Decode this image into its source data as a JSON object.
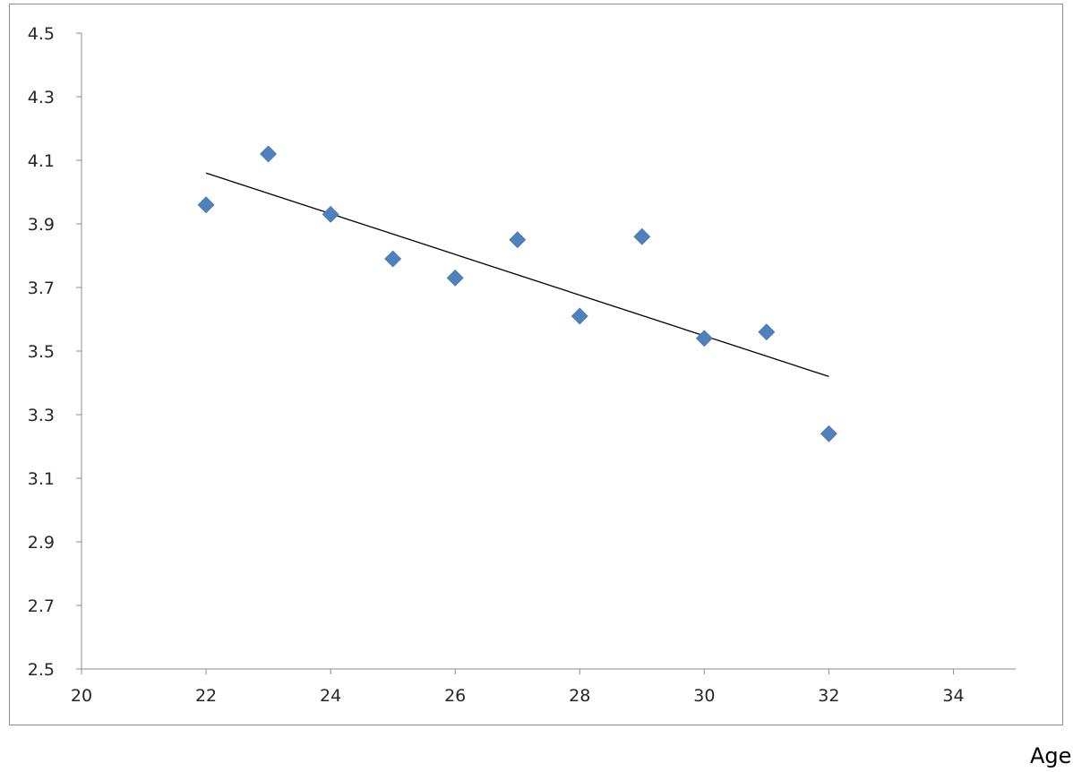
{
  "chart_data": {
    "type": "scatter",
    "xlabel": "Age",
    "ylabel": "",
    "xlim": [
      20,
      35
    ],
    "ylim": [
      2.5,
      4.5
    ],
    "x_ticks": [
      "20",
      "22",
      "24",
      "26",
      "28",
      "30",
      "32",
      "34"
    ],
    "y_ticks": [
      "4.5",
      "4.3",
      "4.1",
      "3.9",
      "3.7",
      "3.5",
      "3.3",
      "3.1",
      "2.9",
      "2.7",
      "2.5"
    ],
    "grid": false,
    "series": [
      {
        "marker": "diamond",
        "color": "#4f81bd",
        "x": [
          22,
          23,
          24,
          25,
          26,
          27,
          28,
          29,
          30,
          31,
          32
        ],
        "y": [
          3.96,
          4.12,
          3.93,
          3.79,
          3.73,
          3.85,
          3.61,
          3.86,
          3.54,
          3.56,
          3.24
        ]
      }
    ],
    "trendline": {
      "type": "linear",
      "color": "#000000",
      "x": [
        22,
        32
      ],
      "y": [
        4.06,
        3.42
      ]
    }
  }
}
